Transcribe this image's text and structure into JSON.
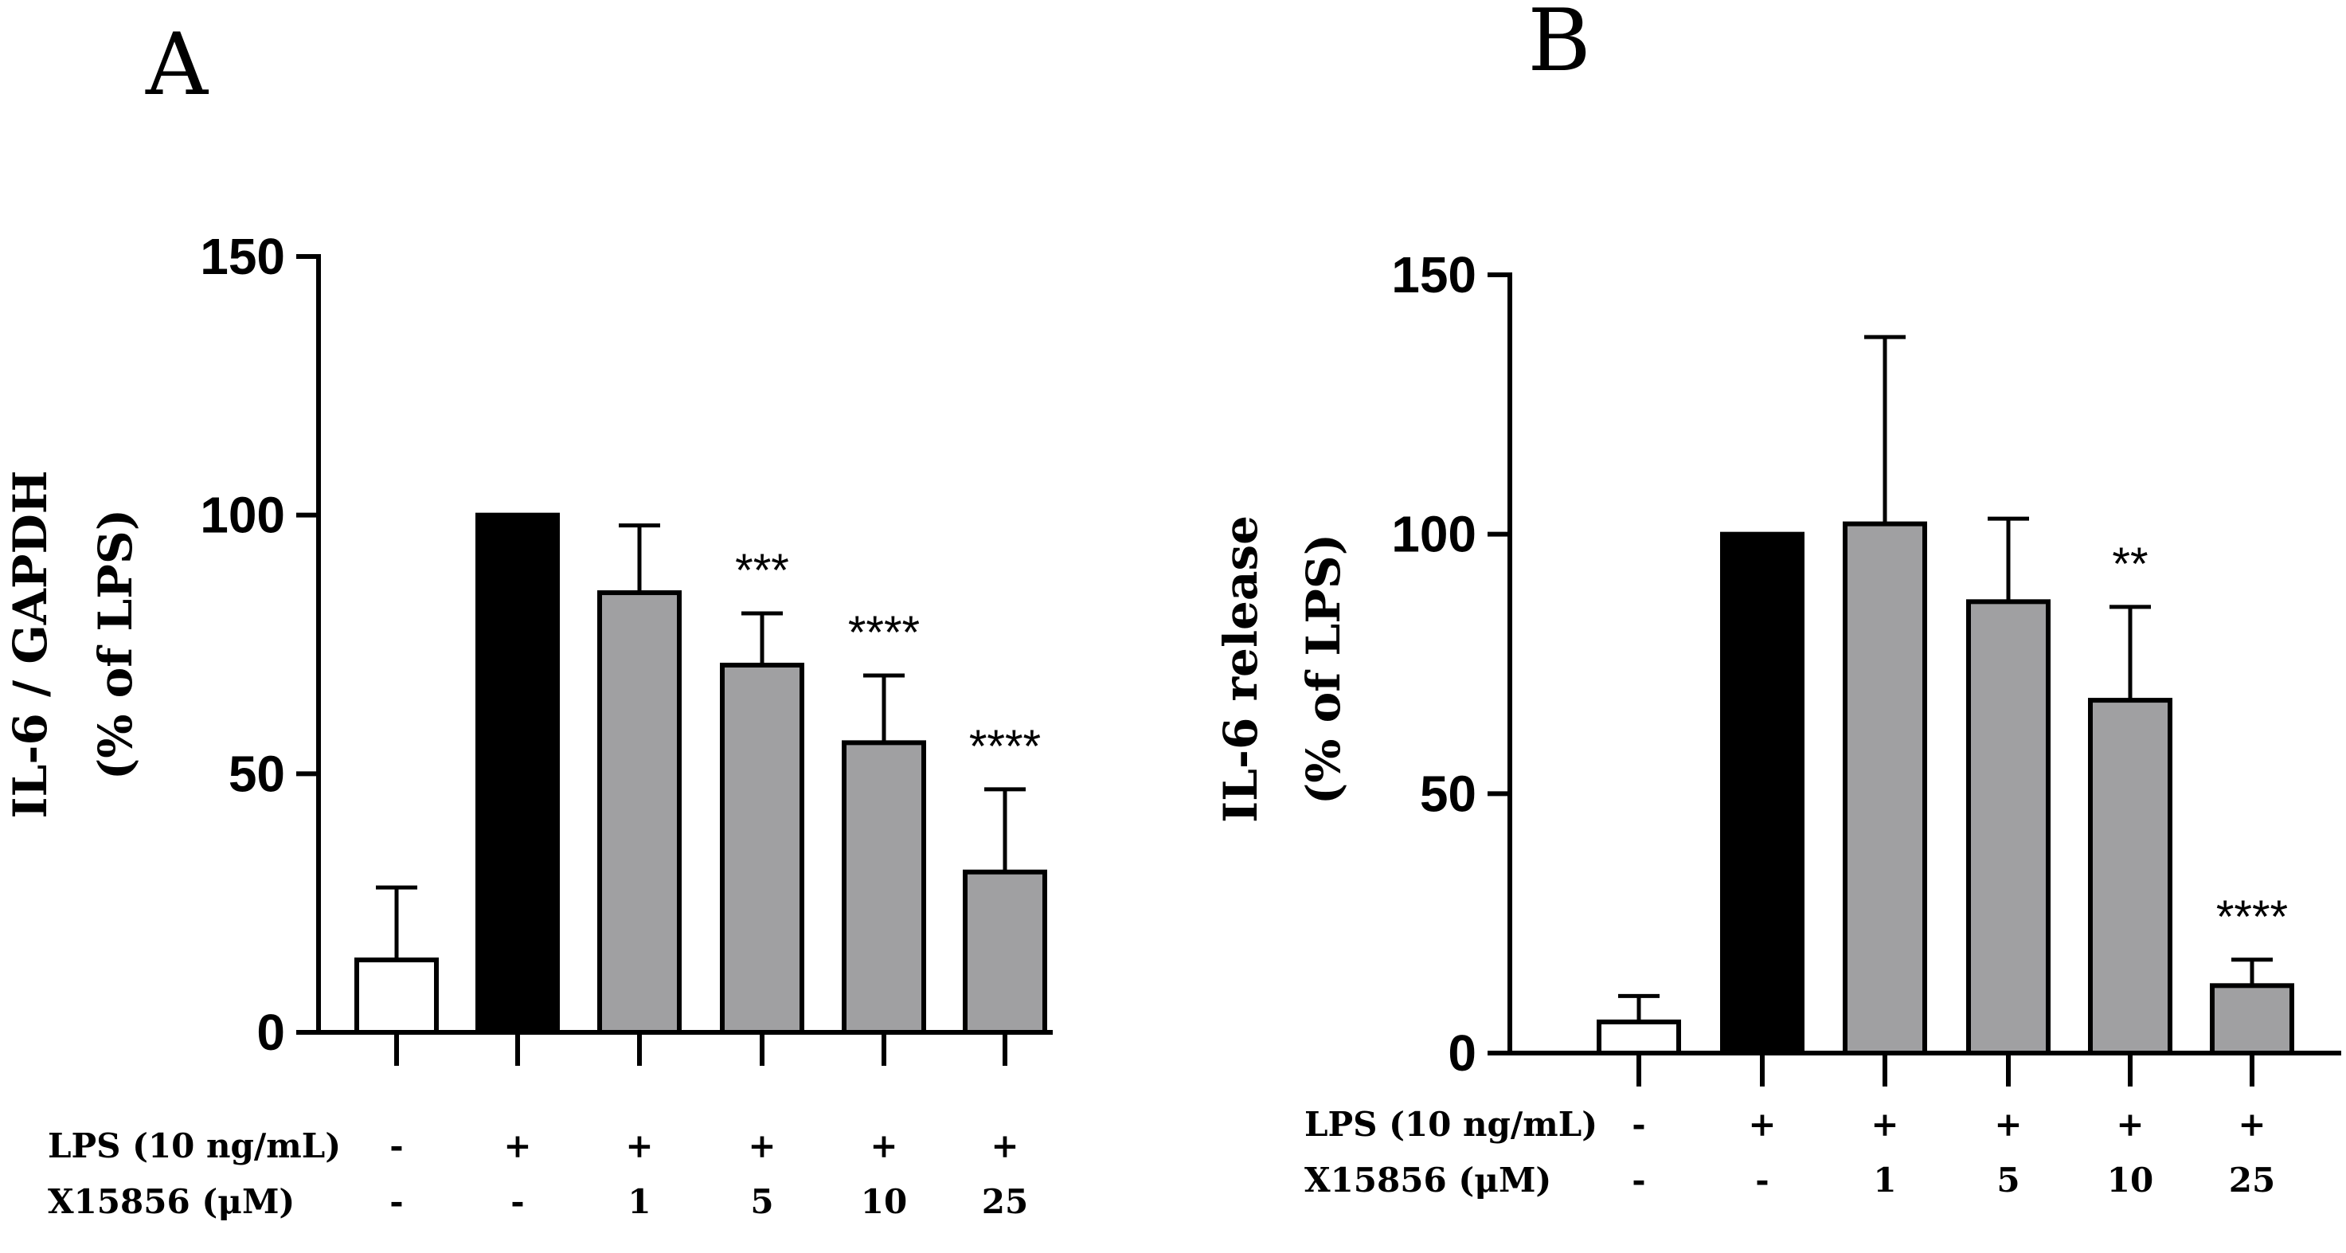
{
  "chart_data": [
    {
      "panel": "A",
      "type": "bar",
      "ylabel_lines": [
        "IL-6 / GAPDH",
        "(% of LPS)"
      ],
      "ylim": [
        0,
        150
      ],
      "yticks": [
        0,
        50,
        100,
        150
      ],
      "ytick_labels": [
        "0",
        "50",
        "100",
        "150"
      ],
      "categories": [
        "1",
        "2",
        "3",
        "4",
        "5",
        "6"
      ],
      "values": [
        14,
        100,
        85,
        71,
        56,
        31
      ],
      "errors": [
        14,
        0,
        13,
        10,
        13,
        16
      ],
      "bar_colors": [
        "#ffffff",
        "#000000",
        "#a0a0a2",
        "#a0a0a2",
        "#a0a0a2",
        "#a0a0a2"
      ],
      "significance": [
        "",
        "",
        "",
        "***",
        "****",
        "****"
      ],
      "conditions": [
        {
          "label": "LPS (10 ng/mL)",
          "values": [
            "-",
            "+",
            "+",
            "+",
            "+",
            "+"
          ]
        },
        {
          "label": "X15856 (μM)",
          "values": [
            "-",
            "-",
            "1",
            "5",
            "10",
            "25"
          ]
        }
      ]
    },
    {
      "panel": "B",
      "type": "bar",
      "ylabel_lines": [
        "IL-6 release",
        "(% of LPS)"
      ],
      "ylim": [
        0,
        150
      ],
      "yticks": [
        0,
        50,
        100,
        150
      ],
      "ytick_labels": [
        "0",
        "50",
        "100",
        "150"
      ],
      "categories": [
        "1",
        "2",
        "3",
        "4",
        "5",
        "6"
      ],
      "values": [
        6,
        100,
        102,
        87,
        68,
        13
      ],
      "errors": [
        5,
        0,
        36,
        16,
        18,
        5
      ],
      "bar_colors": [
        "#ffffff",
        "#000000",
        "#a0a0a2",
        "#a0a0a2",
        "#a0a0a2",
        "#a0a0a2"
      ],
      "significance": [
        "",
        "",
        "",
        "",
        "**",
        "****"
      ],
      "conditions": [
        {
          "label": "LPS (10 ng/mL)",
          "values": [
            "-",
            "+",
            "+",
            "+",
            "+",
            "+"
          ]
        },
        {
          "label": "X15856 (μM)",
          "values": [
            "-",
            "-",
            "1",
            "5",
            "10",
            "25"
          ]
        }
      ]
    }
  ]
}
